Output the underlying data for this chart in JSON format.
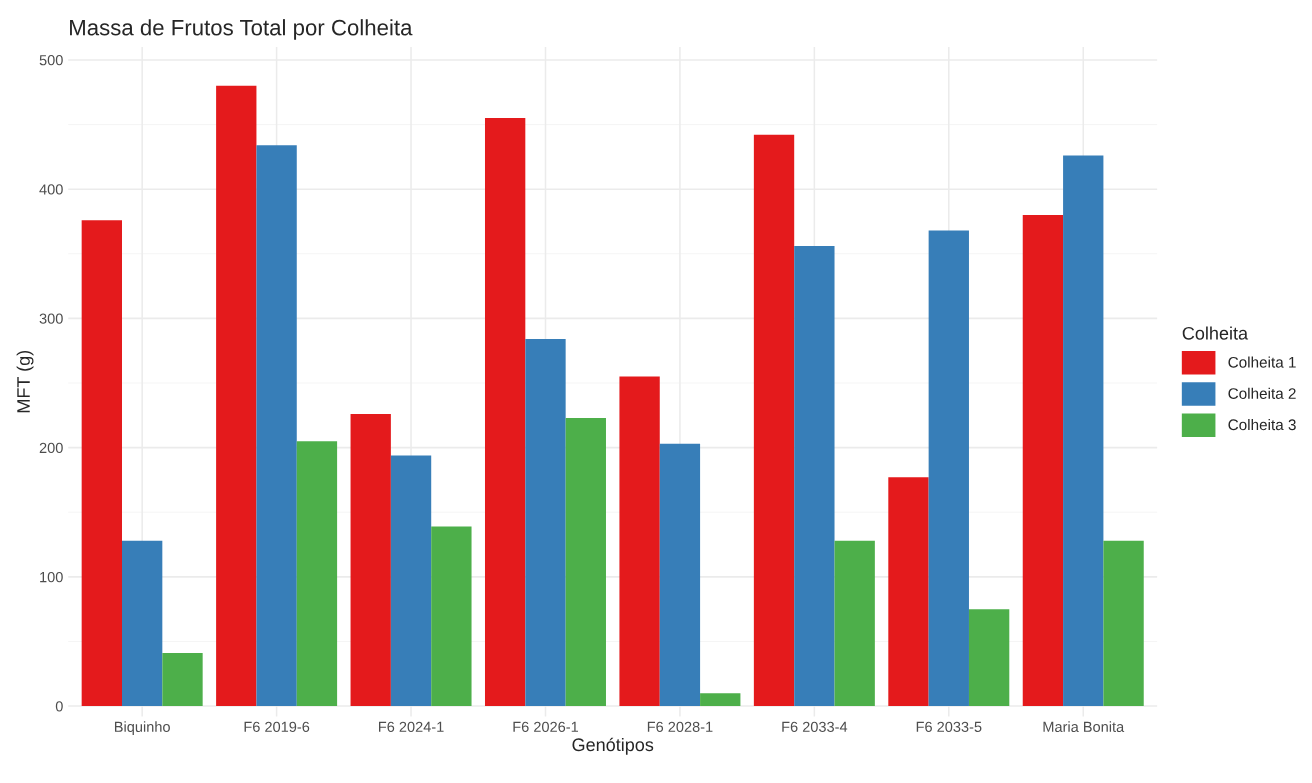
{
  "chart_data": {
    "type": "bar",
    "title": "Massa de Frutos Total por Colheita",
    "xlabel": "Genótipos",
    "ylabel": "MFT (g)",
    "legend_title": "Colheita",
    "categories": [
      "Biquinho",
      "F6 2019-6",
      "F6 2024-1",
      "F6 2026-1",
      "F6 2028-1",
      "F6 2033-4",
      "F6 2033-5",
      "Maria Bonita"
    ],
    "series": [
      {
        "name": "Colheita 1",
        "color": "#e41a1c",
        "values": [
          376,
          480,
          226,
          455,
          255,
          442,
          177,
          380
        ]
      },
      {
        "name": "Colheita 2",
        "color": "#377eb8",
        "values": [
          128,
          434,
          194,
          284,
          203,
          356,
          368,
          426
        ]
      },
      {
        "name": "Colheita 3",
        "color": "#4daf4a",
        "values": [
          41,
          205,
          139,
          223,
          10,
          128,
          75,
          128
        ]
      }
    ],
    "ylim": [
      -8,
      510
    ],
    "yticks": [
      0,
      100,
      200,
      300,
      400,
      500
    ],
    "grid": true,
    "legend": "right"
  }
}
